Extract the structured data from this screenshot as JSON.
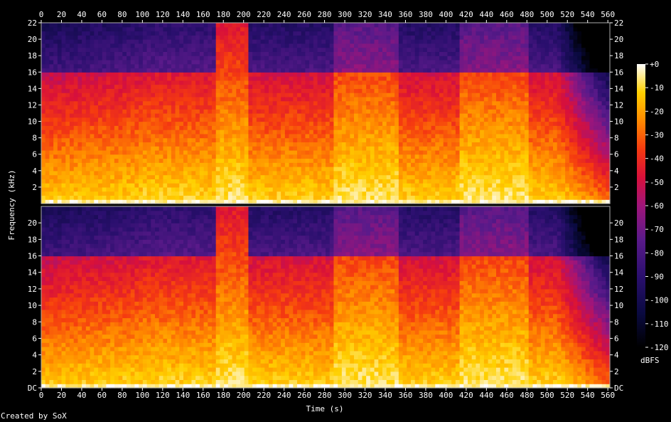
{
  "credit": "Created by SoX",
  "chart_data": {
    "type": "heatmap",
    "subtype": "spectrogram",
    "channels": 2,
    "xlabel": "Time (s)",
    "ylabel": "Frequency (kHz)",
    "x_ticks": [
      0,
      20,
      40,
      60,
      80,
      100,
      120,
      140,
      160,
      180,
      200,
      220,
      240,
      260,
      280,
      300,
      320,
      340,
      360,
      380,
      400,
      420,
      440,
      460,
      480,
      500,
      520,
      540,
      560
    ],
    "xlim": [
      0,
      562
    ],
    "y_ticks_top_channel": [
      "2",
      "4",
      "6",
      "8",
      "10",
      "12",
      "14",
      "16",
      "18",
      "20",
      "22"
    ],
    "y_ticks_bottom_channel": [
      "DC",
      "2",
      "4",
      "6",
      "8",
      "10",
      "12",
      "14",
      "16",
      "18",
      "20"
    ],
    "y_tick_values_khz": [
      2,
      4,
      6,
      8,
      10,
      12,
      14,
      16,
      18,
      20,
      22
    ],
    "ylim_khz": [
      0,
      22
    ],
    "colorbar": {
      "label": "dBFS",
      "ticks": [
        "+0",
        "-10",
        "-20",
        "-30",
        "-40",
        "-50",
        "-60",
        "-70",
        "-80",
        "-90",
        "-100",
        "-110",
        "-120"
      ],
      "range_dbfs": [
        -120,
        0
      ]
    },
    "lowpass_cutoff_khz": 16,
    "segments_loud_bright": [
      [
        172,
        205
      ],
      [
        290,
        355
      ],
      [
        415,
        480
      ]
    ],
    "fade_out_start_s": 510
  }
}
